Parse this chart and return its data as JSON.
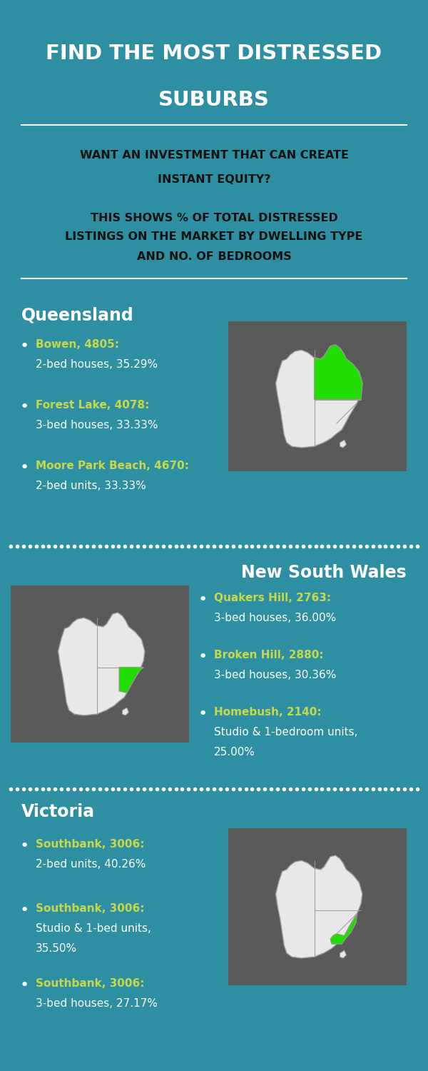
{
  "bg_color": "#2e8fa3",
  "dark_bg_color": "#5a5a5a",
  "title_line1": "FIND THE MOST DISTRESSED",
  "title_line2": "SUBURBS",
  "subtitle1": "WANT AN INVESTMENT THAT CAN CREATE",
  "subtitle2": "INSTANT EQUITY?",
  "desc_line1": "THIS SHOWS % OF TOTAL DISTRESSED",
  "desc_line2": "LISTINGS ON THE MARKET BY DWELLING TYPE",
  "desc_line3": "AND NO. OF BEDROOMS",
  "white": "#ffffff",
  "black": "#111111",
  "yellow_green": "#c8d84b",
  "map_bg": "#5a5a5a",
  "aus_fill": "#e8e8e8",
  "aus_edge": "#999999",
  "highlight": "#22dd00",
  "sections": [
    {
      "state": "Queensland",
      "map_side": "right",
      "items": [
        {
          "name": "Bowen, 4805:",
          "detail": "2-bed houses, 35.29%"
        },
        {
          "name": "Forest Lake, 4078:",
          "detail": "3-bed houses, 33.33%"
        },
        {
          "name": "Moore Park Beach, 4670:",
          "detail": "2-bed units, 33.33%"
        }
      ]
    },
    {
      "state": "New South Wales",
      "map_side": "left",
      "items": [
        {
          "name": "Quakers Hill, 2763:",
          "detail": "3-bed houses, 36.00%"
        },
        {
          "name": "Broken Hill, 2880:",
          "detail": "3-bed houses, 30.36%"
        },
        {
          "name": "Homebush, 2140:",
          "detail": "Studio & 1-bedroom units,\n25.00%"
        }
      ]
    },
    {
      "state": "Victoria",
      "map_side": "right",
      "items": [
        {
          "name": "Southbank, 3006:",
          "detail": "2-bed units, 40.26%"
        },
        {
          "name": "Southbank, 3006:",
          "detail": "Studio & 1-bed units,\n35.50%"
        },
        {
          "name": "Southbank, 3006:",
          "detail": "3-bed houses, 27.17%"
        }
      ]
    }
  ]
}
